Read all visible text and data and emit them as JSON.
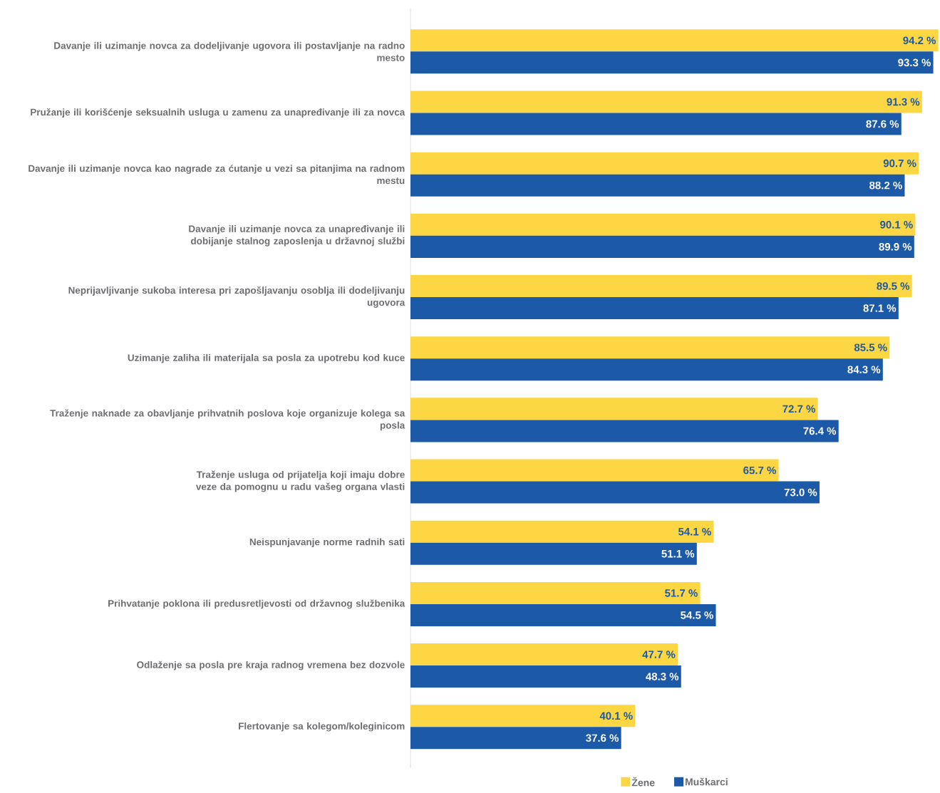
{
  "chart_data": {
    "type": "bar",
    "orientation": "horizontal",
    "categories": [
      "Davanje ili uzimanje novca za dodeljivanje ugovora ili postavljanje na radno mesto",
      "Pružanje ili korišćenje seksualnih usluga u zamenu za unapređivanje ili za novca",
      "Davanje ili uzimanje novca kao nagrade za ćutanje u vezi sa pitanjima na radnom mestu",
      "Davanje ili uzimanje novca za unapređivanje ili dobijanje stalnog zaposlenja u državnoj službi",
      "Neprijavljivanje sukoba interesa pri zapošljavanju osoblja ili dodeljivanju ugovora",
      "Uzimanje zaliha ili materijala sa posla za upotrebu kod kuce",
      "Traženje naknade za obavljanje prihvatnih poslova koje organizuje kolega sa posla",
      "Traženje usluga od prijatelja koji imaju dobre veze da pomognu u radu vašeg organa vlasti",
      "Neispunjavanje norme radnih sati",
      "Prihvatanje poklona ili predusretljevosti od državnog službenika",
      "Odlaženje sa posla pre kraja radnog vremena bez dozvole",
      "Flertovanje sa kolegom/koleginicom"
    ],
    "series": [
      {
        "name": "Žene",
        "color": "#fdd643",
        "values": [
          94.2,
          91.3,
          90.7,
          90.1,
          89.5,
          85.5,
          72.7,
          65.7,
          54.1,
          51.7,
          47.7,
          40.1
        ],
        "value_labels": [
          "94.2 %",
          "91.3 %",
          "90.7 %",
          "90.1 %",
          "89.5 %",
          "85.5 %",
          "72.7 %",
          "65.7 %",
          "54.1 %",
          "51.7 %",
          "47.7 %",
          "40.1 %"
        ]
      },
      {
        "name": "Muškarci",
        "color": "#1c5aa8",
        "values": [
          93.3,
          87.6,
          88.2,
          89.9,
          87.1,
          84.3,
          76.4,
          73.0,
          51.1,
          54.5,
          48.3,
          37.6
        ],
        "value_labels": [
          "93.3 %",
          "87.6 %",
          "88.2 %",
          "89.9 %",
          "87.1 %",
          "84.3 %",
          "76.4 %",
          "73.0 %",
          "51.1 %",
          "54.5 %",
          "48.3 %",
          "37.6 %"
        ]
      }
    ],
    "xlim": [
      0,
      94.5
    ],
    "legend": "bottom"
  }
}
